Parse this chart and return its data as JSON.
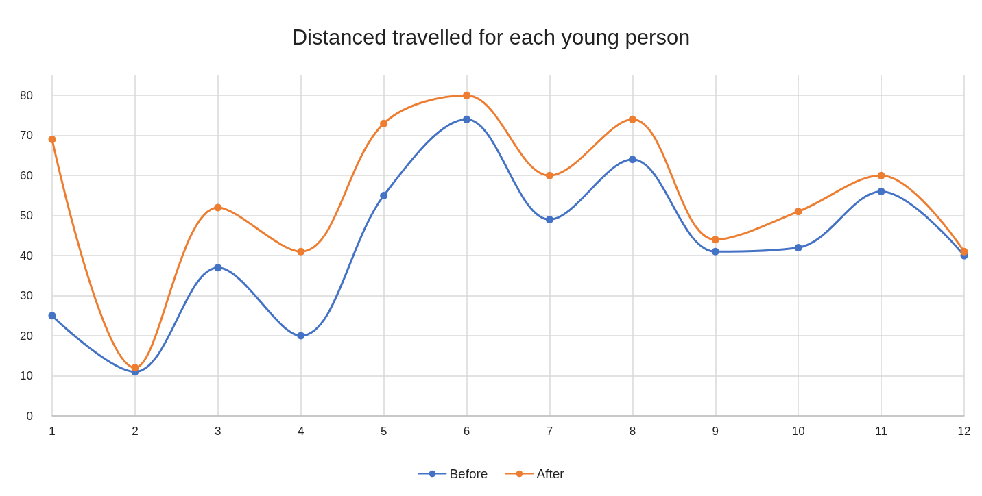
{
  "chart_data": {
    "type": "line",
    "title": "Distanced travelled for each young person",
    "categories": [
      "1",
      "2",
      "3",
      "4",
      "5",
      "6",
      "7",
      "8",
      "9",
      "10",
      "11",
      "12"
    ],
    "series": [
      {
        "name": "Before",
        "color": "#4472c4",
        "values": [
          25,
          11,
          37,
          20,
          55,
          74,
          49,
          64,
          41,
          42,
          56,
          40
        ]
      },
      {
        "name": "After",
        "color": "#ed7d31",
        "values": [
          69,
          12,
          52,
          41,
          73,
          80,
          60,
          74,
          44,
          51,
          60,
          41
        ]
      }
    ],
    "ylim": [
      0,
      85
    ],
    "yticks": [
      0,
      10,
      20,
      30,
      40,
      50,
      60,
      70,
      80
    ],
    "grid": true,
    "legend": "bottom",
    "marker": "circle",
    "line_style": "solid"
  }
}
